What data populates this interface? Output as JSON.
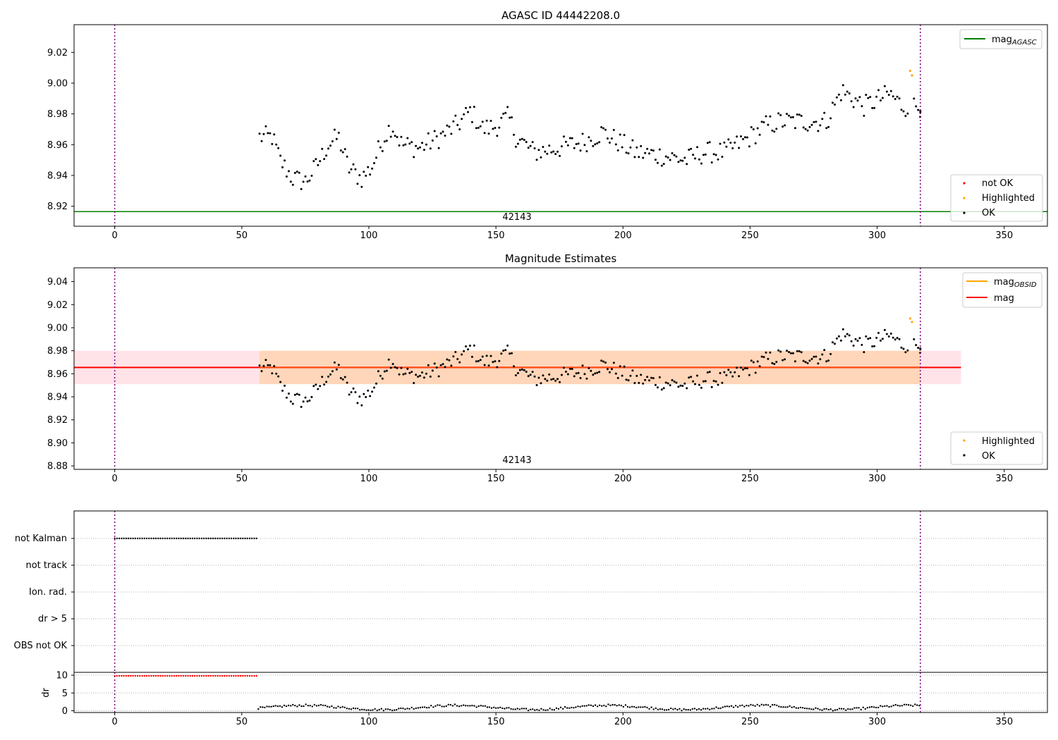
{
  "chart_data": [
    {
      "type": "scatter",
      "title": "AGASC ID 44442208.0",
      "xlabel": "",
      "ylabel": "",
      "xlim": [
        -16,
        367
      ],
      "ylim": [
        8.907,
        9.038
      ],
      "xticks": [
        0,
        50,
        100,
        150,
        200,
        250,
        300,
        350
      ],
      "yticks": [
        8.92,
        8.94,
        8.96,
        8.98,
        9.0,
        9.02
      ],
      "grid": false,
      "vlines": [
        0,
        317
      ],
      "hlines": [
        {
          "name": "mag_AGASC",
          "y": 8.9165,
          "color": "#008000"
        }
      ],
      "obsid_label": {
        "text": "42143",
        "x": 158
      },
      "legend_lines": {
        "location": "upper right",
        "entries": [
          {
            "label": "mag",
            "sub": "AGASC",
            "color": "#008000"
          }
        ]
      },
      "legend_points": {
        "location": "lower right",
        "entries": [
          {
            "label": "not OK",
            "color": "#ff0000"
          },
          {
            "label": "Highlighted",
            "color": "#ffa500"
          },
          {
            "label": "OK",
            "color": "#000000"
          }
        ]
      },
      "highlighted": [
        {
          "x": 313,
          "y": 9.008
        },
        {
          "x": 313.7,
          "y": 9.005
        }
      ]
    },
    {
      "type": "scatter",
      "title": "Magnitude Estimates",
      "xlabel": "",
      "ylabel": "",
      "xlim": [
        -16,
        367
      ],
      "ylim": [
        8.877,
        9.052
      ],
      "xticks": [
        0,
        50,
        100,
        150,
        200,
        250,
        300,
        350
      ],
      "yticks": [
        8.88,
        8.9,
        8.92,
        8.94,
        8.96,
        8.98,
        9.0,
        9.02,
        9.04
      ],
      "grid": false,
      "vlines": [
        0,
        317
      ],
      "bands": [
        {
          "name": "mag_band",
          "y": [
            8.951,
            8.98
          ],
          "x": [
            -16,
            333
          ],
          "color": "#ffc0cb"
        },
        {
          "name": "mag_OBSID_band",
          "y": [
            8.951,
            8.98
          ],
          "x": [
            57,
            317
          ],
          "color": "#ffa500"
        }
      ],
      "hlines": [
        {
          "name": "mag",
          "y": 8.9655,
          "color": "#ff0000",
          "x": [
            -16,
            333
          ]
        }
      ],
      "obsid_label": {
        "text": "42143",
        "x": 158
      },
      "legend_lines": {
        "location": "upper right",
        "entries": [
          {
            "label": "mag",
            "sub": "OBSID",
            "color": "#ffa500"
          },
          {
            "label": "mag",
            "sub": "",
            "color": "#ff0000"
          }
        ]
      },
      "legend_points": {
        "location": "lower right",
        "entries": [
          {
            "label": "Highlighted",
            "color": "#ffa500"
          },
          {
            "label": "OK",
            "color": "#000000"
          }
        ]
      },
      "highlighted": [
        {
          "x": 313,
          "y": 9.008
        },
        {
          "x": 313.7,
          "y": 9.005
        }
      ]
    },
    {
      "type": "scatter",
      "title": "",
      "xlabel": "",
      "ylabel": "",
      "xlim": [
        -16,
        367
      ],
      "categories": [
        "not Kalman",
        "not track",
        "Ion. rad.",
        "dr > 5",
        "OBS not OK"
      ],
      "grid": true,
      "vlines": [
        0,
        317
      ],
      "flags": [
        {
          "category": "not Kalman",
          "x_range": [
            0,
            56
          ]
        }
      ]
    },
    {
      "type": "scatter",
      "title": "",
      "xlabel": "",
      "ylabel": "dr",
      "xlim": [
        -16,
        367
      ],
      "ylim": [
        -0.5,
        10.8
      ],
      "xticks": [
        0,
        50,
        100,
        150,
        200,
        250,
        300,
        350
      ],
      "yticks": [
        0,
        5,
        10
      ],
      "grid": true,
      "vlines": [
        0,
        317
      ],
      "not_ok_range": {
        "x": [
          0,
          56
        ],
        "y": 9.8,
        "color": "#ff0000"
      }
    }
  ]
}
